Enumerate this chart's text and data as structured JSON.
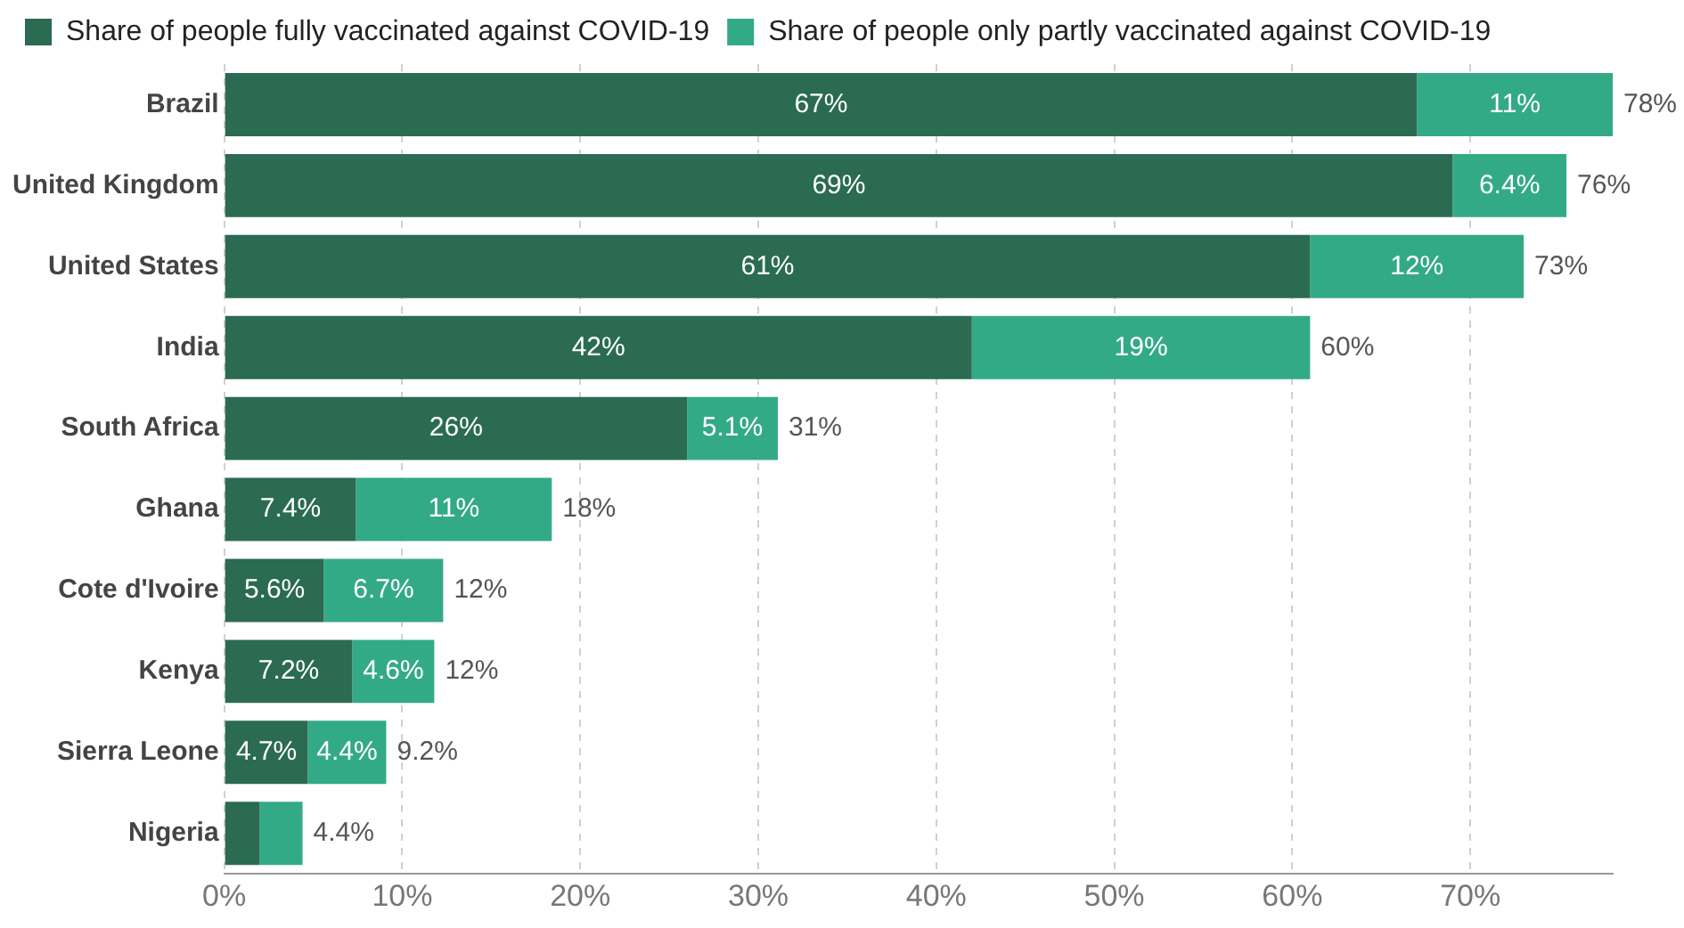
{
  "chart_data": {
    "type": "bar",
    "orientation": "horizontal",
    "stacked": true,
    "categories": [
      "Brazil",
      "United Kingdom",
      "United States",
      "India",
      "South Africa",
      "Ghana",
      "Cote d'Ivoire",
      "Kenya",
      "Sierra Leone",
      "Nigeria"
    ],
    "series": [
      {
        "name": "Share of people fully vaccinated against COVID-19",
        "color": "#2a6b52",
        "values": [
          67,
          69,
          61,
          42,
          26,
          7.4,
          5.6,
          7.2,
          4.7,
          2.0
        ],
        "value_labels": [
          "67%",
          "69%",
          "61%",
          "42%",
          "26%",
          "7.4%",
          "5.6%",
          "7.2%",
          "4.7%",
          null
        ]
      },
      {
        "name": "Share of people only partly vaccinated against COVID-19",
        "color": "#33aa86",
        "values": [
          11,
          6.4,
          12,
          19,
          5.1,
          11,
          6.7,
          4.6,
          4.4,
          2.4
        ],
        "value_labels": [
          "11%",
          "6.4%",
          "12%",
          "19%",
          "5.1%",
          "11%",
          "6.7%",
          "4.6%",
          "4.4%",
          null
        ]
      }
    ],
    "totals": [
      "78%",
      "76%",
      "73%",
      "60%",
      "31%",
      "18%",
      "12%",
      "12%",
      "9.2%",
      "4.4%"
    ],
    "xlim": [
      0,
      78
    ],
    "xticks": [
      {
        "value": 0,
        "label": "0%"
      },
      {
        "value": 10,
        "label": "10%"
      },
      {
        "value": 20,
        "label": "20%"
      },
      {
        "value": 30,
        "label": "30%"
      },
      {
        "value": 40,
        "label": "40%"
      },
      {
        "value": 50,
        "label": "50%"
      },
      {
        "value": 60,
        "label": "60%"
      },
      {
        "value": 70,
        "label": "70%"
      }
    ],
    "grid": "x",
    "legend": "top left"
  }
}
